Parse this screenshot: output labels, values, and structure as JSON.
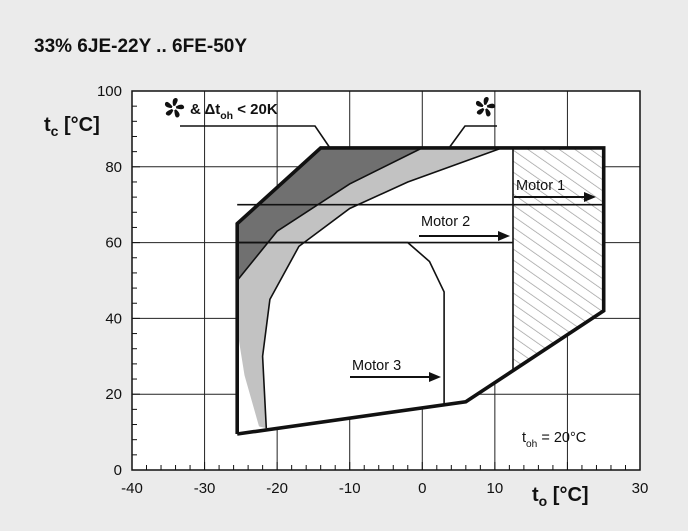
{
  "chart_data": {
    "type": "area",
    "title": "33%   6JE-22Y .. 6FE-50Y",
    "xlabel": "t",
    "xlabel_sub": "o",
    "xlabel_unit": " [°C]",
    "ylabel": "t",
    "ylabel_sub": "c",
    "ylabel_unit": " [°C]",
    "xlim": [
      -40,
      30
    ],
    "ylim": [
      0,
      100
    ],
    "x_ticks": [
      -40,
      -30,
      -20,
      -10,
      0,
      10,
      30
    ],
    "y_ticks": [
      0,
      20,
      40,
      60,
      80,
      100
    ],
    "grid": true,
    "colors": {
      "background": "#ebebeb",
      "plot_bg": "#ffffff",
      "dark_region": "#707070",
      "light_region": "#c2c2c2",
      "hatch": "#a8a8a8",
      "line": "#111111"
    },
    "envelope": [
      [
        -25.5,
        9.5
      ],
      [
        -25.5,
        65
      ],
      [
        -14,
        85
      ],
      [
        25,
        85
      ],
      [
        25,
        42
      ],
      [
        6,
        18
      ],
      [
        -25.5,
        9.5
      ]
    ],
    "regions": [
      {
        "name": "dark",
        "polygon": [
          [
            -25.5,
            50
          ],
          [
            -25.5,
            65
          ],
          [
            -14,
            85
          ],
          [
            0,
            85
          ],
          [
            -10,
            75.5
          ],
          [
            -20,
            63
          ],
          [
            -25.5,
            50
          ]
        ]
      },
      {
        "name": "light",
        "polygon": [
          [
            -22.5,
            11.5
          ],
          [
            -24.5,
            25
          ],
          [
            -25.5,
            37
          ],
          [
            -25.5,
            50
          ],
          [
            -20,
            63
          ],
          [
            -10,
            75.5
          ],
          [
            0,
            85
          ],
          [
            11,
            85
          ],
          [
            -2,
            76
          ],
          [
            -10,
            69
          ],
          [
            -17,
            59
          ],
          [
            -21,
            45
          ],
          [
            -22,
            30
          ],
          [
            -21.5,
            11
          ],
          [
            -22.5,
            11.5
          ]
        ]
      }
    ],
    "curves": [
      {
        "name": "boundary-dark",
        "points": [
          [
            -25.5,
            50
          ],
          [
            -20,
            63
          ],
          [
            -10,
            75.5
          ],
          [
            0,
            85
          ]
        ]
      },
      {
        "name": "boundary-light",
        "points": [
          [
            -21.5,
            11
          ],
          [
            -22,
            30
          ],
          [
            -21,
            45
          ],
          [
            -17,
            59
          ],
          [
            -10,
            69
          ],
          [
            -2,
            76
          ],
          [
            11,
            85
          ]
        ]
      }
    ],
    "motor_lines": [
      {
        "name": "Motor 1",
        "points": [
          [
            -25.5,
            70
          ],
          [
            25,
            70
          ]
        ]
      },
      {
        "name": "Motor 2",
        "points": [
          [
            -25.5,
            60
          ],
          [
            12.5,
            60
          ]
        ]
      },
      {
        "name": "Motor 3",
        "points": [
          [
            -25.5,
            60
          ],
          [
            -2,
            60
          ],
          [
            1,
            55
          ],
          [
            3,
            47
          ],
          [
            3,
            17
          ]
        ]
      }
    ],
    "hatched_region": {
      "polygon": [
        [
          12.5,
          26.5
        ],
        [
          12.5,
          85
        ],
        [
          25,
          85
        ],
        [
          25,
          42
        ],
        [
          12.5,
          26.5
        ]
      ]
    },
    "annotations": [
      {
        "id": "motor1",
        "text": "Motor 1"
      },
      {
        "id": "motor2",
        "text": "Motor 2"
      },
      {
        "id": "motor3",
        "text": "Motor 3"
      },
      {
        "id": "fan_dt",
        "text": "& Δt",
        "sub": "oh",
        "after": " < 20K"
      },
      {
        "id": "fan",
        "text": ""
      },
      {
        "id": "toh",
        "text": "t",
        "sub": "oh",
        "after": " = 20°C"
      }
    ]
  }
}
